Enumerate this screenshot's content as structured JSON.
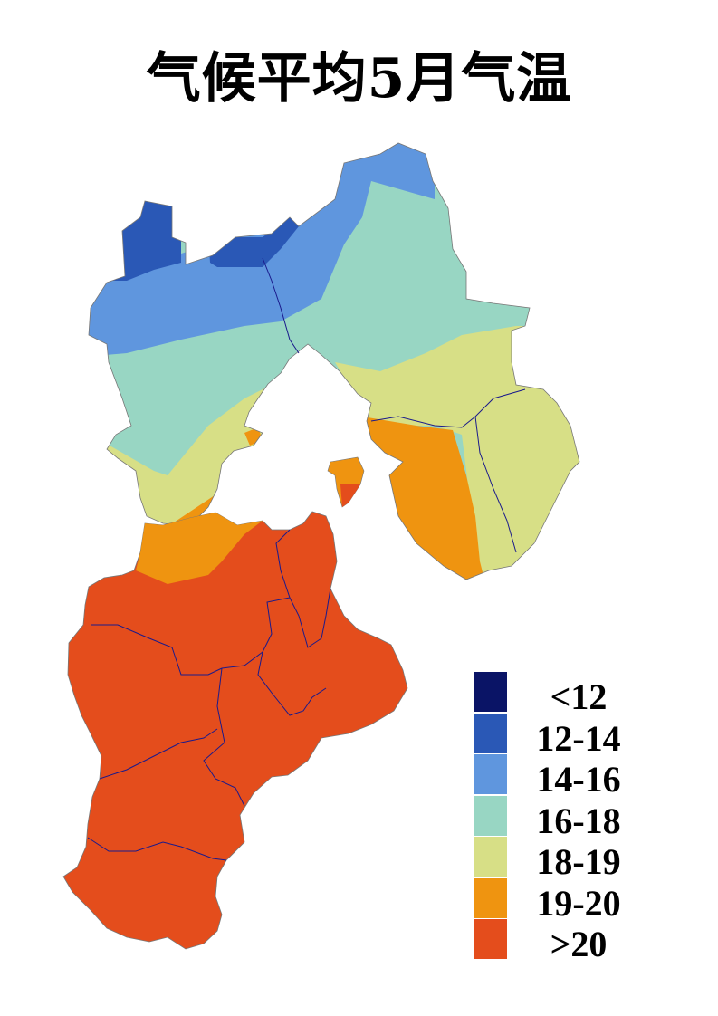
{
  "title": "气候平均5月气温",
  "legend": [
    {
      "label": "<12",
      "color": "#0a1466"
    },
    {
      "label": "12-14",
      "color": "#2a58b6"
    },
    {
      "label": "14-16",
      "color": "#5f96de"
    },
    {
      "label": "16-18",
      "color": "#98d6c3"
    },
    {
      "label": "18-19",
      "color": "#d7df86"
    },
    {
      "label": "19-20",
      "color": "#ef9410"
    },
    {
      "label": ">20",
      "color": "#e44d1c"
    }
  ],
  "colors": {
    "boundary": "#1a1a8c",
    "background": "#ffffff"
  }
}
